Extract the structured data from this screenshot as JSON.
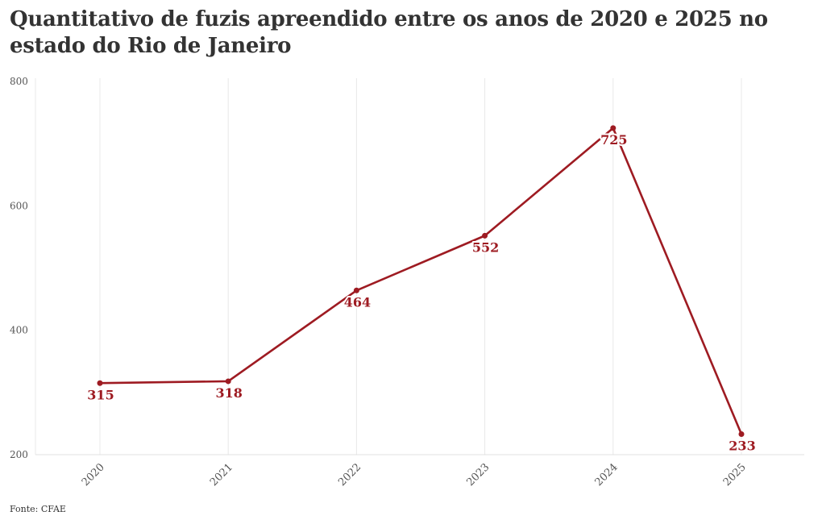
{
  "title": "Quantitativo de fuzis apreendido entre os anos de 2020 e 2025 no estado do Rio de Janeiro",
  "source": "Fonte: CFAE",
  "colors": {
    "line": "#9e1b22",
    "grid": "#e8e8e8",
    "text": "#333333"
  },
  "chart_data": {
    "type": "line",
    "title": "Quantitativo de fuzis apreendido entre os anos de 2020 e 2025 no estado do Rio de Janeiro",
    "xlabel": "",
    "ylabel": "",
    "x": [
      "2020",
      "2021",
      "2022",
      "2023",
      "2024",
      "2025"
    ],
    "series": [
      {
        "values": [
          315,
          318,
          464,
          552,
          725,
          233
        ]
      }
    ],
    "data_labels": [
      "315",
      "318",
      "464",
      "552",
      "725",
      "233"
    ],
    "ylim": [
      200,
      800
    ],
    "yticks": [
      200,
      400,
      600,
      800
    ],
    "ytick_labels": [
      "200",
      "400",
      "600",
      "800"
    ],
    "grid": "vertical",
    "legend": "none"
  }
}
